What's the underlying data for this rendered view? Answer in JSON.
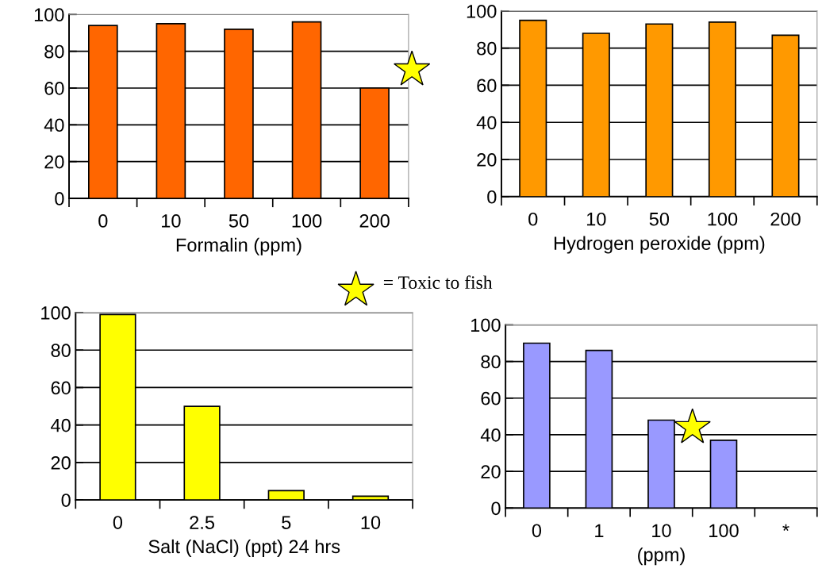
{
  "chart_data": [
    {
      "type": "bar",
      "xlabel": "Formalin (ppm)",
      "categories": [
        "0",
        "10",
        "50",
        "100",
        "200"
      ],
      "values": [
        94,
        95,
        92,
        96,
        60
      ],
      "color": "#ff6600",
      "ylim": [
        0,
        100
      ],
      "yticks": [
        0,
        20,
        40,
        60,
        80,
        100
      ],
      "grid": "y",
      "annotations": [
        "= Toxic to fish"
      ]
    },
    {
      "type": "bar",
      "xlabel": "Hydrogen peroxide (ppm)",
      "categories": [
        "0",
        "10",
        "50",
        "100",
        "200"
      ],
      "values": [
        95,
        88,
        93,
        94,
        87
      ],
      "color": "#ff9900",
      "ylim": [
        0,
        100
      ],
      "yticks": [
        0,
        20,
        40,
        60,
        80,
        100
      ],
      "grid": "y"
    },
    {
      "type": "bar",
      "xlabel": "Salt (NaCl) (ppt) 24 hrs",
      "categories": [
        "0",
        "2.5",
        "5",
        "10"
      ],
      "values": [
        99,
        50,
        5,
        2
      ],
      "color": "#ffff00",
      "ylim": [
        0,
        100
      ],
      "yticks": [
        0,
        20,
        40,
        60,
        80,
        100
      ],
      "grid": "y"
    },
    {
      "type": "bar",
      "xlabel": "(ppm)",
      "categories": [
        "0",
        "1",
        "10",
        "100",
        "*"
      ],
      "values": [
        90,
        86,
        48,
        37,
        null
      ],
      "color": "#9999ff",
      "ylim": [
        0,
        100
      ],
      "yticks": [
        0,
        20,
        40,
        60,
        80,
        100
      ],
      "grid": "y"
    }
  ]
}
